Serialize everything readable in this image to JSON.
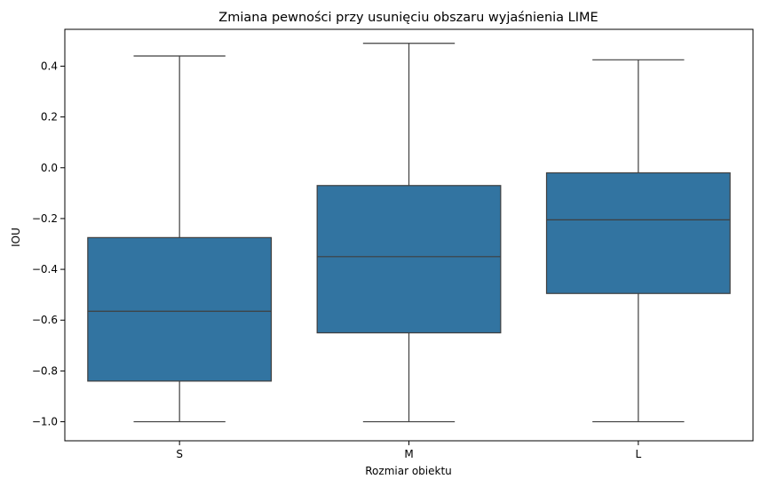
{
  "chart_data": {
    "type": "box",
    "title": "Zmiana pewności przy usunięciu obszaru wyjaśnienia LIME",
    "xlabel": "Rozmiar obiektu",
    "ylabel": "IOU",
    "categories": [
      "S",
      "M",
      "L"
    ],
    "boxes": [
      {
        "category": "S",
        "whisker_low": -1.0,
        "q1": -0.84,
        "median": -0.565,
        "q3": -0.275,
        "whisker_high": 0.44
      },
      {
        "category": "M",
        "whisker_low": -1.0,
        "q1": -0.65,
        "median": -0.35,
        "q3": -0.07,
        "whisker_high": 0.49
      },
      {
        "category": "L",
        "whisker_low": -1.0,
        "q1": -0.495,
        "median": -0.205,
        "q3": -0.02,
        "whisker_high": 0.425
      }
    ],
    "yticks": [
      -1.0,
      -0.8,
      -0.6,
      -0.4,
      -0.2,
      0.0,
      0.2,
      0.4
    ],
    "ytick_labels": [
      "−1.0",
      "−0.8",
      "−0.6",
      "−0.4",
      "−0.2",
      "0.0",
      "0.2",
      "0.4"
    ],
    "ylim": [
      -1.075,
      0.545
    ],
    "grid": false,
    "colors": {
      "box_fill": "#3274a1",
      "line": "#3f3f3f",
      "axis": "#000000"
    }
  }
}
